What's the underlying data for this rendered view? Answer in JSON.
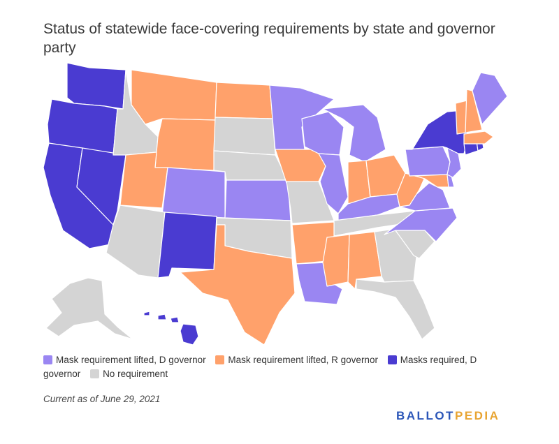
{
  "title": "Status of statewide face-covering requirements by state and governor party",
  "colors": {
    "lifted_d": "#9a86f2",
    "lifted_r": "#ffa16b",
    "required_d": "#4a3bd1",
    "none": "#d4d4d4"
  },
  "legend": [
    {
      "key": "lifted_d",
      "label": "Mask requirement lifted, D governor"
    },
    {
      "key": "lifted_r",
      "label": "Mask requirement lifted, R governor"
    },
    {
      "key": "required_d",
      "label": "Masks required, D governor"
    },
    {
      "key": "none",
      "label": "No requirement"
    }
  ],
  "states": {
    "WA": "required_d",
    "OR": "required_d",
    "CA": "required_d",
    "NV": "required_d",
    "NM": "required_d",
    "HI": "required_d",
    "NY": "required_d",
    "CT": "required_d",
    "RI": "required_d",
    "MT": "lifted_r",
    "ND": "lifted_r",
    "WY": "lifted_r",
    "UT": "lifted_r",
    "TX": "lifted_r",
    "IA": "lifted_r",
    "AR": "lifted_r",
    "MS": "lifted_r",
    "AL": "lifted_r",
    "IN": "lifted_r",
    "OH": "lifted_r",
    "WV": "lifted_r",
    "NH": "lifted_r",
    "VT": "lifted_r",
    "MA": "lifted_r",
    "MD": "lifted_r",
    "MN": "lifted_d",
    "WI": "lifted_d",
    "MI": "lifted_d",
    "IL": "lifted_d",
    "KS": "lifted_d",
    "CO": "lifted_d",
    "KY": "lifted_d",
    "LA": "lifted_d",
    "VA": "lifted_d",
    "NC": "lifted_d",
    "PA": "lifted_d",
    "NJ": "lifted_d",
    "DE": "lifted_d",
    "ME": "lifted_d",
    "ID": "none",
    "SD": "none",
    "NE": "none",
    "AZ": "none",
    "OK": "none",
    "MO": "none",
    "TN": "none",
    "GA": "none",
    "SC": "none",
    "FL": "none",
    "AK": "none"
  },
  "as_of": "Current as of June 29, 2021",
  "brand": {
    "part1": "BALLOT",
    "part2": "PEDIA",
    "color1": "#2b56b8",
    "color2": "#e8a431"
  }
}
